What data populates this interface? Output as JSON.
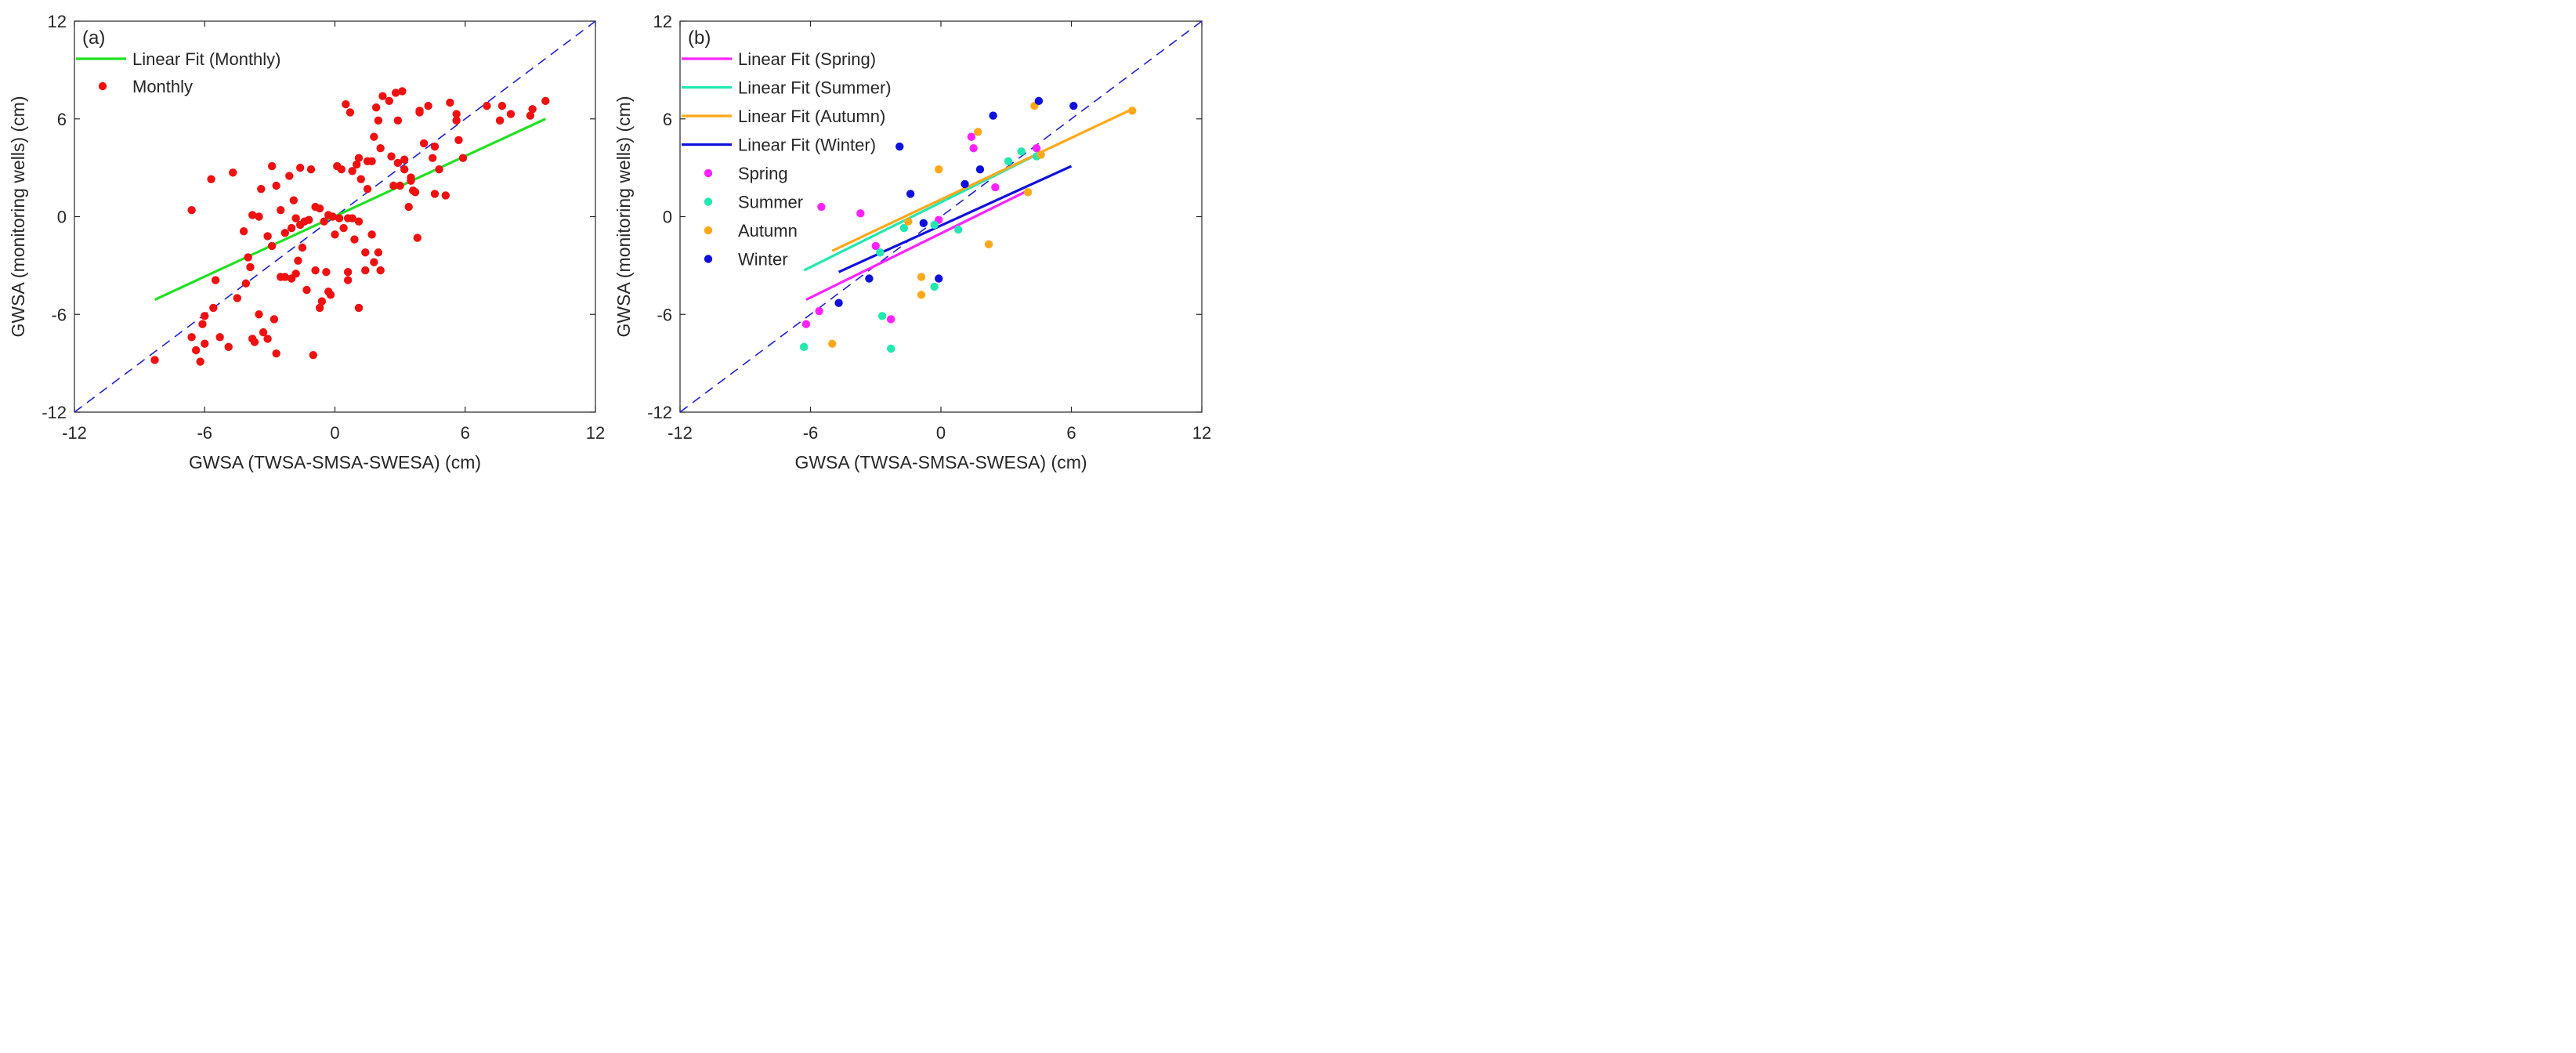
{
  "chart_data": [
    {
      "type": "scatter",
      "panel_label": "(a)",
      "xlabel": "GWSA (TWSA-SMSA-SWESA) (cm)",
      "ylabel": "GWSA (monitoring wells) (cm)",
      "xlim": [
        -12,
        12
      ],
      "ylim": [
        -12,
        12
      ],
      "xticks": [
        "-12",
        "-6",
        "0",
        "6",
        "12"
      ],
      "yticks": [
        "-12",
        "-6",
        "0",
        "6",
        "12"
      ],
      "one_to_one_line": {
        "x": [
          -12,
          12
        ],
        "y": [
          -12,
          12
        ],
        "color": "#1f1fd6",
        "style": "dashed"
      },
      "legend": [
        {
          "label": "Linear Fit (Monthly)",
          "kind": "line",
          "color": "#22e022"
        },
        {
          "label": "Monthly",
          "kind": "marker",
          "color": "#ee1111"
        }
      ],
      "fits": [
        {
          "name": "Linear Fit (Monthly)",
          "color": "#22e022",
          "x": [
            -8.3,
            9.7
          ],
          "y": [
            -5.1,
            6.0
          ]
        }
      ],
      "series": [
        {
          "name": "Monthly",
          "color": "#ee1111",
          "points": [
            [
              -8.3,
              -8.8
            ],
            [
              -6.6,
              -7.4
            ],
            [
              -6.4,
              -8.2
            ],
            [
              -6.2,
              -8.9
            ],
            [
              -6.0,
              -7.8
            ],
            [
              -6.1,
              -6.6
            ],
            [
              -6.0,
              -6.1
            ],
            [
              -5.6,
              -5.6
            ],
            [
              -5.5,
              -3.9
            ],
            [
              -5.3,
              -7.4
            ],
            [
              -4.9,
              -8.0
            ],
            [
              -4.5,
              -5.0
            ],
            [
              -4.1,
              -4.1
            ],
            [
              -4.0,
              -2.5
            ],
            [
              -3.8,
              -7.5
            ],
            [
              -3.7,
              -7.7
            ],
            [
              -3.5,
              -6.0
            ],
            [
              -3.3,
              -7.1
            ],
            [
              -3.1,
              -7.5
            ],
            [
              -2.8,
              -6.3
            ],
            [
              -2.7,
              -8.4
            ],
            [
              -2.9,
              -1.8
            ],
            [
              -2.5,
              -3.7
            ],
            [
              -2.3,
              -3.7
            ],
            [
              -2.0,
              -3.8
            ],
            [
              -1.8,
              -3.5
            ],
            [
              -1.7,
              -2.7
            ],
            [
              -1.5,
              -1.9
            ],
            [
              -1.3,
              -4.5
            ],
            [
              -1.0,
              -8.5
            ],
            [
              -0.9,
              -3.3
            ],
            [
              -0.7,
              -5.6
            ],
            [
              -0.6,
              -5.2
            ],
            [
              -0.3,
              -4.6
            ],
            [
              -0.4,
              -3.4
            ],
            [
              -0.2,
              -4.8
            ],
            [
              -6.6,
              0.4
            ],
            [
              -5.7,
              2.3
            ],
            [
              -4.7,
              2.7
            ],
            [
              -4.2,
              -0.9
            ],
            [
              -3.9,
              -3.1
            ],
            [
              -3.8,
              0.1
            ],
            [
              -3.5,
              0.0
            ],
            [
              -3.4,
              1.7
            ],
            [
              -3.1,
              -1.2
            ],
            [
              -2.9,
              3.1
            ],
            [
              -2.7,
              1.9
            ],
            [
              -2.5,
              0.4
            ],
            [
              -2.3,
              -1.0
            ],
            [
              -2.1,
              2.5
            ],
            [
              -2.0,
              -0.7
            ],
            [
              -1.9,
              1.0
            ],
            [
              -1.8,
              -0.1
            ],
            [
              -1.6,
              -0.5
            ],
            [
              -1.6,
              3.0
            ],
            [
              -1.4,
              -0.3
            ],
            [
              -1.2,
              -0.2
            ],
            [
              -1.1,
              2.9
            ],
            [
              -0.9,
              0.6
            ],
            [
              -0.7,
              0.5
            ],
            [
              -0.5,
              -0.3
            ],
            [
              -0.3,
              0.1
            ],
            [
              -0.1,
              0.0
            ],
            [
              0.1,
              3.1
            ],
            [
              0.0,
              -1.1
            ],
            [
              0.2,
              -0.1
            ],
            [
              0.3,
              2.9
            ],
            [
              0.4,
              -0.7
            ],
            [
              0.5,
              6.9
            ],
            [
              0.6,
              -0.1
            ],
            [
              0.6,
              -3.4
            ],
            [
              0.6,
              -3.9
            ],
            [
              0.7,
              6.4
            ],
            [
              0.8,
              2.8
            ],
            [
              0.8,
              -0.1
            ],
            [
              0.9,
              -1.4
            ],
            [
              1.0,
              3.2
            ],
            [
              1.1,
              3.6
            ],
            [
              1.1,
              -0.3
            ],
            [
              1.1,
              -5.6
            ],
            [
              1.2,
              2.3
            ],
            [
              1.4,
              -2.2
            ],
            [
              1.4,
              -3.3
            ],
            [
              1.5,
              1.7
            ],
            [
              1.5,
              3.4
            ],
            [
              1.7,
              3.4
            ],
            [
              1.7,
              -1.1
            ],
            [
              1.8,
              -2.8
            ],
            [
              1.9,
              6.7
            ],
            [
              1.8,
              4.9
            ],
            [
              2.0,
              5.9
            ],
            [
              2.0,
              -2.2
            ],
            [
              2.1,
              -3.3
            ],
            [
              2.1,
              4.2
            ],
            [
              2.2,
              7.4
            ],
            [
              2.5,
              7.1
            ],
            [
              2.6,
              3.7
            ],
            [
              2.7,
              1.9
            ],
            [
              2.8,
              7.6
            ],
            [
              2.9,
              3.3
            ],
            [
              2.9,
              5.9
            ],
            [
              3.0,
              1.9
            ],
            [
              3.1,
              7.7
            ],
            [
              3.2,
              3.5
            ],
            [
              3.2,
              2.9
            ],
            [
              3.4,
              0.6
            ],
            [
              3.5,
              2.2
            ],
            [
              3.5,
              2.4
            ],
            [
              3.6,
              1.6
            ],
            [
              3.7,
              1.5
            ],
            [
              3.8,
              -1.3
            ],
            [
              3.9,
              6.5
            ],
            [
              3.9,
              6.4
            ],
            [
              4.1,
              4.5
            ],
            [
              4.3,
              6.8
            ],
            [
              4.5,
              3.6
            ],
            [
              4.6,
              4.3
            ],
            [
              4.6,
              1.4
            ],
            [
              4.8,
              2.9
            ],
            [
              5.1,
              1.3
            ],
            [
              5.3,
              7.0
            ],
            [
              5.6,
              6.3
            ],
            [
              5.6,
              5.9
            ],
            [
              5.7,
              4.7
            ],
            [
              5.9,
              3.6
            ],
            [
              7.0,
              6.8
            ],
            [
              7.6,
              5.9
            ],
            [
              7.7,
              6.8
            ],
            [
              8.1,
              6.3
            ],
            [
              9.0,
              6.2
            ],
            [
              9.1,
              6.6
            ],
            [
              9.7,
              7.1
            ]
          ]
        }
      ]
    },
    {
      "type": "scatter",
      "panel_label": "(b)",
      "xlabel": "GWSA (TWSA-SMSA-SWESA) (cm)",
      "ylabel": "GWSA (monitoring wells) (cm)",
      "xlim": [
        -12,
        12
      ],
      "ylim": [
        -12,
        12
      ],
      "xticks": [
        "-12",
        "-6",
        "0",
        "6",
        "12"
      ],
      "yticks": [
        "-12",
        "-6",
        "0",
        "6",
        "12"
      ],
      "one_to_one_line": {
        "x": [
          -12,
          12
        ],
        "y": [
          -12,
          12
        ],
        "color": "#1f1fd6",
        "style": "dashed"
      },
      "legend": [
        {
          "label": "Linear Fit (Spring)",
          "kind": "line",
          "color": "#ff22ff"
        },
        {
          "label": "Linear Fit (Summer)",
          "kind": "line",
          "color": "#22e8b0"
        },
        {
          "label": "Linear Fit (Autumn)",
          "kind": "line",
          "color": "#ffa81a"
        },
        {
          "label": "Linear Fit (Winter)",
          "kind": "line",
          "color": "#1010dd"
        },
        {
          "label": "Spring",
          "kind": "marker",
          "color": "#ff22ff"
        },
        {
          "label": "Summer",
          "kind": "marker",
          "color": "#22e8b0"
        },
        {
          "label": "Autumn",
          "kind": "marker",
          "color": "#ffa81a"
        },
        {
          "label": "Winter",
          "kind": "marker",
          "color": "#1010dd"
        }
      ],
      "fits": [
        {
          "name": "Linear Fit (Spring)",
          "color": "#ff22ff",
          "x": [
            -6.2,
            4.0
          ],
          "y": [
            -5.1,
            1.6
          ]
        },
        {
          "name": "Linear Fit (Summer)",
          "color": "#22e8b0",
          "x": [
            -6.3,
            4.4
          ],
          "y": [
            -3.3,
            3.8
          ]
        },
        {
          "name": "Linear Fit (Autumn)",
          "color": "#ffa81a",
          "x": [
            -5.0,
            8.8
          ],
          "y": [
            -2.1,
            6.6
          ]
        },
        {
          "name": "Linear Fit (Winter)",
          "color": "#1010dd",
          "x": [
            -4.7,
            6.0
          ],
          "y": [
            -3.4,
            3.1
          ]
        }
      ],
      "series": [
        {
          "name": "Spring",
          "color": "#ff22ff",
          "points": [
            [
              -6.2,
              -6.6
            ],
            [
              -5.6,
              -5.8
            ],
            [
              -5.5,
              0.6
            ],
            [
              -3.7,
              0.2
            ],
            [
              -3.0,
              -1.8
            ],
            [
              -2.3,
              -6.3
            ],
            [
              -0.1,
              -0.2
            ],
            [
              1.4,
              4.9
            ],
            [
              1.5,
              4.2
            ],
            [
              2.5,
              1.8
            ],
            [
              4.4,
              4.2
            ]
          ]
        },
        {
          "name": "Summer",
          "color": "#22e8b0",
          "points": [
            [
              -6.3,
              -8.0
            ],
            [
              -2.8,
              -2.2
            ],
            [
              -2.7,
              -6.1
            ],
            [
              -2.3,
              -8.1
            ],
            [
              -1.7,
              -0.7
            ],
            [
              -0.3,
              -0.5
            ],
            [
              -0.3,
              -4.3
            ],
            [
              0.8,
              -0.8
            ],
            [
              3.1,
              3.4
            ],
            [
              3.7,
              4.0
            ],
            [
              4.4,
              3.7
            ]
          ]
        },
        {
          "name": "Autumn",
          "color": "#ffa81a",
          "points": [
            [
              -5.0,
              -7.8
            ],
            [
              -1.5,
              -0.3
            ],
            [
              -0.9,
              -3.7
            ],
            [
              -0.9,
              -4.8
            ],
            [
              -0.1,
              2.9
            ],
            [
              1.7,
              5.2
            ],
            [
              2.2,
              -1.7
            ],
            [
              4.0,
              1.5
            ],
            [
              4.3,
              6.8
            ],
            [
              4.6,
              3.8
            ],
            [
              8.8,
              6.5
            ]
          ]
        },
        {
          "name": "Winter",
          "color": "#1010dd",
          "points": [
            [
              -4.7,
              -5.3
            ],
            [
              -3.3,
              -3.8
            ],
            [
              -1.9,
              4.3
            ],
            [
              -1.4,
              1.4
            ],
            [
              -0.8,
              -0.4
            ],
            [
              -0.1,
              -3.8
            ],
            [
              1.1,
              2.0
            ],
            [
              1.8,
              2.9
            ],
            [
              2.4,
              6.2
            ],
            [
              4.5,
              7.1
            ],
            [
              6.1,
              6.8
            ]
          ]
        }
      ]
    }
  ]
}
